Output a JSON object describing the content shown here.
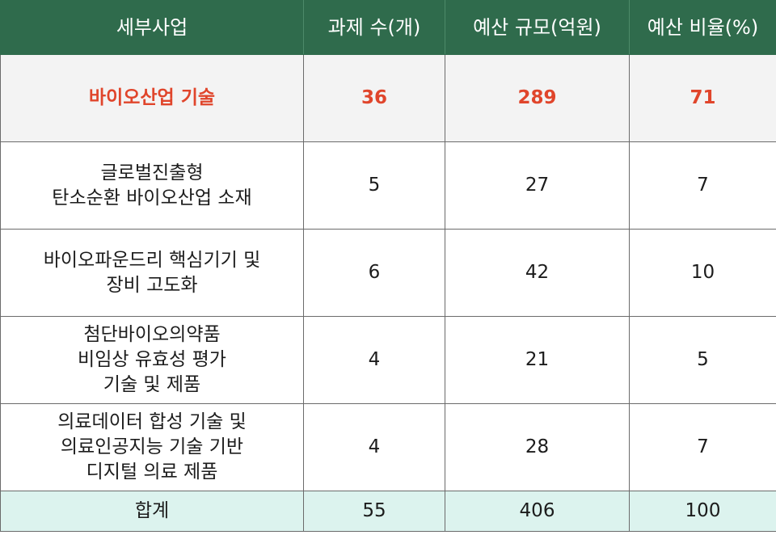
{
  "table": {
    "headers": [
      "세부사업",
      "과제 수(개)",
      "예산 규모(억원)",
      "예산 비율(%)"
    ],
    "highlight_color": "#e0452b",
    "header_color": "#2f6b4c",
    "total_row_color": "#dcf3ee",
    "rows": [
      {
        "name": "바이오산업 기술",
        "tasks": "36",
        "budget": "289",
        "ratio": "71"
      },
      {
        "name": "글로벌진출형\n탄소순환 바이오산업 소재",
        "tasks": "5",
        "budget": "27",
        "ratio": "7"
      },
      {
        "name": "바이오파운드리 핵심기기 및\n장비 고도화",
        "tasks": "6",
        "budget": "42",
        "ratio": "10"
      },
      {
        "name": "첨단바이오의약품\n비임상 유효성 평가\n기술 및 제품",
        "tasks": "4",
        "budget": "21",
        "ratio": "5"
      },
      {
        "name": "의료데이터 합성 기술 및\n의료인공지능 기술 기반\n디지털 의료 제품",
        "tasks": "4",
        "budget": "28",
        "ratio": "7"
      }
    ],
    "total": {
      "label": "합계",
      "tasks": "55",
      "budget": "406",
      "ratio": "100"
    }
  }
}
